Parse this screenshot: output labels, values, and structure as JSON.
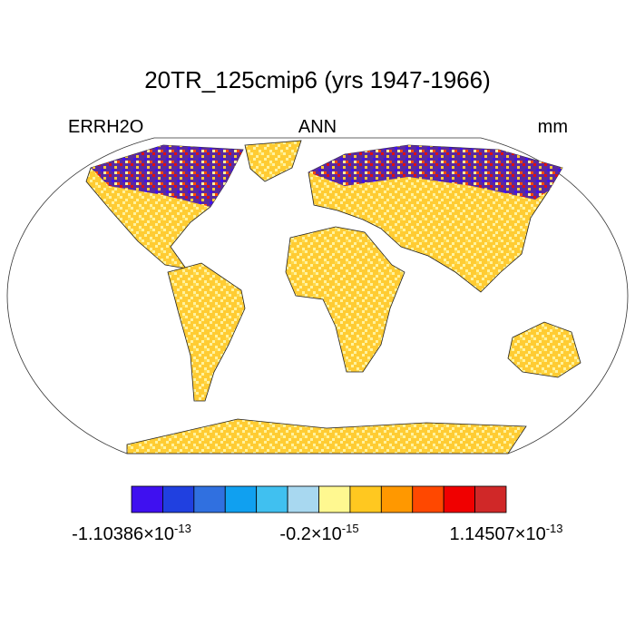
{
  "header": {
    "title": "20TR_125cmip6 (yrs 1947-1966)",
    "left": "ERRH2O",
    "center": "ANN",
    "right": "mm"
  },
  "colorbar": {
    "colors": [
      "#3f10f0",
      "#2040e0",
      "#3070e0",
      "#10a0f0",
      "#40c0f0",
      "#a8d8f0",
      "#fff890",
      "#ffc820",
      "#ff9800",
      "#ff4800",
      "#f00000",
      "#d02828"
    ],
    "labels": [
      {
        "base": "-1.10386×10",
        "exponent": "-13"
      },
      {
        "base": "-0.2×10",
        "exponent": "-15"
      },
      {
        "base": "1.14507×10",
        "exponent": "-13"
      }
    ]
  }
}
